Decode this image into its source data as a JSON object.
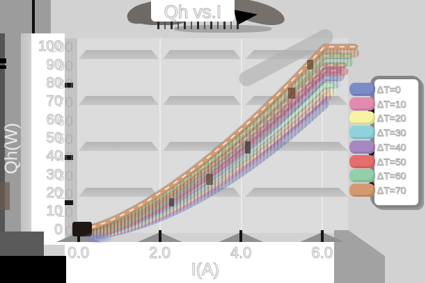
{
  "window": {
    "title": "Qh vs.I"
  },
  "chart_data": {
    "type": "line",
    "title": "Qh vs.I",
    "xlabel": "I(A)",
    "ylabel": "Qh(W)",
    "xlim": [
      0,
      6.6
    ],
    "ylim": [
      0,
      106
    ],
    "grid": "horizontal-bands",
    "legend_position": "right",
    "xticks": {
      "values": [
        0,
        2,
        4,
        6
      ],
      "labels": [
        "0.0",
        "2.0",
        "4.0",
        "6.0"
      ]
    },
    "yticks": {
      "values": [
        0,
        10,
        20,
        30,
        40,
        50,
        60,
        70,
        80,
        90,
        100
      ],
      "labels": [
        "0",
        "10",
        "20",
        "30",
        "40",
        "50",
        "60",
        "70",
        "80",
        "90",
        "100"
      ]
    },
    "x_samples": [
      0,
      1,
      2,
      3,
      4,
      5,
      6
    ],
    "series": [
      {
        "name": "ΔT=0",
        "color": "#7b8cc8",
        "end": 72,
        "exp": 1.75,
        "cap_ext": 0,
        "values": [
          0,
          3.1,
          10.4,
          21.1,
          34.9,
          51.6,
          70.9
        ]
      },
      {
        "name": "ΔT=10",
        "color": "#e28bb1",
        "end": 76,
        "exp": 1.71,
        "cap_ext": 4,
        "values": [
          0,
          3.5,
          11.4,
          22.9,
          37.5,
          54.9,
          74.9
        ]
      },
      {
        "name": "ΔT=20",
        "color": "#f7f3a3",
        "end": 79,
        "exp": 1.66,
        "cap_ext": 10,
        "values": [
          0,
          4.0,
          12.6,
          24.7,
          39.8,
          57.6,
          77.9
        ]
      },
      {
        "name": "ΔT=30",
        "color": "#8fd2dd",
        "end": 83,
        "exp": 1.62,
        "cap_ext": 16,
        "values": [
          0,
          4.5,
          13.8,
          26.6,
          42.5,
          60.9,
          81.9
        ]
      },
      {
        "name": "ΔT=40",
        "color": "#a787c1",
        "end": 87,
        "exp": 1.58,
        "cap_ext": 22,
        "values": [
          0,
          5.1,
          15.1,
          28.7,
          45.2,
          64.4,
          85.9
        ]
      },
      {
        "name": "ΔT=50",
        "color": "#e66d6d",
        "end": 90,
        "exp": 1.53,
        "cap_ext": 28,
        "values": [
          0,
          5.7,
          16.5,
          30.8,
          47.8,
          67.2,
          88.9
        ]
      },
      {
        "name": "ΔT=60",
        "color": "#93cfa9",
        "end": 95,
        "exp": 1.49,
        "cap_ext": 36,
        "values": [
          0,
          6.5,
          18.3,
          33.4,
          51.3,
          71.5,
          93.8
        ]
      },
      {
        "name": "ΔT=70",
        "color": "#d39a6f",
        "end": 100,
        "exp": 1.45,
        "cap_ext": 44,
        "values": [
          0,
          7.4,
          20.1,
          36.2,
          54.9,
          75.9,
          98.8
        ]
      }
    ]
  }
}
